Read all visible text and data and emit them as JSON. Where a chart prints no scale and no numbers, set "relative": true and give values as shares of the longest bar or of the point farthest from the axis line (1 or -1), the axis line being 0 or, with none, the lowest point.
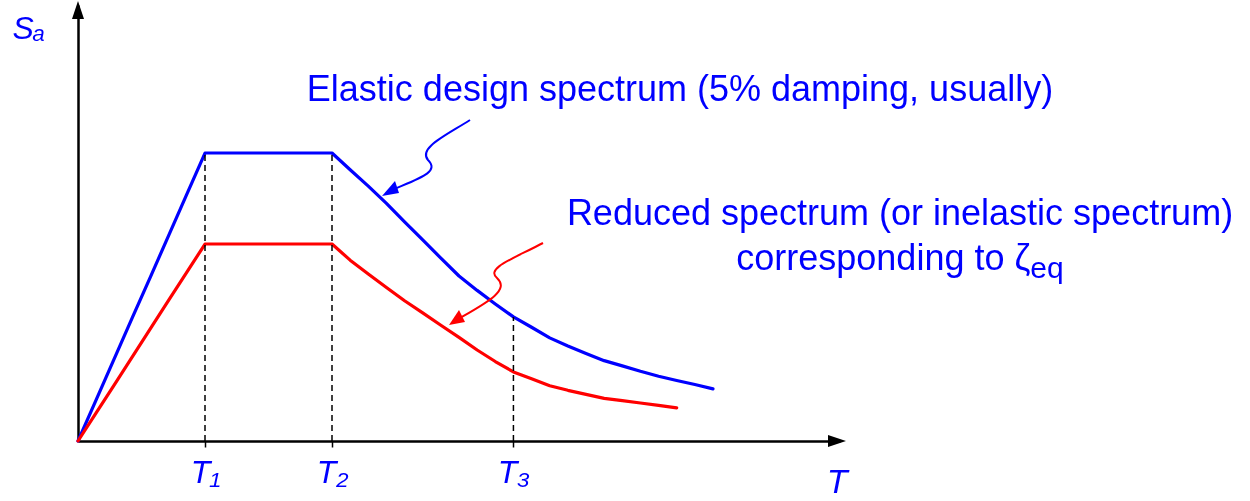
{
  "chart_data": {
    "type": "line",
    "relative": true,
    "xlabel": "T",
    "ylabel": "Sₐ",
    "categories": [
      null,
      null,
      null,
      null,
      null,
      null,
      null,
      "T₁",
      null,
      null,
      null,
      null,
      null,
      null,
      "T₂",
      null,
      null,
      null,
      null,
      null,
      null,
      null,
      null,
      null,
      "T₃",
      null,
      null,
      null,
      null,
      null,
      null,
      null,
      null,
      null,
      null,
      null,
      null,
      null,
      null,
      null,
      null,
      null,
      null
    ],
    "grid": false,
    "marker": "none",
    "line_style": "solid",
    "series": [
      {
        "name": "Elastic design spectrum (5% damping, usually)",
        "color": "#0000ff",
        "values": [
          0,
          0.143,
          0.286,
          0.429,
          0.571,
          0.714,
          0.857,
          1,
          1,
          1,
          1,
          1,
          1,
          1,
          1,
          0.942,
          0.885,
          0.825,
          0.761,
          0.698,
          0.635,
          0.573,
          0.523,
          0.476,
          0.431,
          0.395,
          0.358,
          0.33,
          0.304,
          0.279,
          0.261,
          0.242,
          0.225,
          0.21,
          0.196,
          0.181,
          null,
          null,
          null,
          null,
          null,
          null,
          null
        ]
      },
      {
        "name": "Reduced spectrum (or inelastic spectrum) corresponding to ζ$_{eq}$",
        "color": "#ff0000",
        "values": [
          0,
          0.098,
          0.195,
          0.293,
          0.391,
          0.489,
          0.586,
          0.684,
          0.684,
          0.684,
          0.684,
          0.684,
          0.684,
          0.684,
          0.684,
          0.628,
          0.58,
          0.533,
          0.487,
          0.445,
          0.402,
          0.36,
          0.316,
          0.276,
          0.24,
          0.216,
          0.192,
          0.176,
          0.162,
          0.148,
          0.14,
          0.132,
          0.124,
          0.115,
          null,
          null,
          null,
          null,
          null,
          null,
          null,
          null,
          null
        ]
      }
    ],
    "ref_lines": [
      {
        "axis": "x",
        "value": "T₁",
        "label": null,
        "color": "#000000",
        "line_style": "dashed"
      },
      {
        "axis": "x",
        "value": "T₂",
        "label": null,
        "color": "#000000",
        "line_style": "dashed"
      },
      {
        "axis": "x",
        "value": "T₃",
        "label": null,
        "color": "#000000",
        "line_style": "dashed"
      }
    ]
  }
}
